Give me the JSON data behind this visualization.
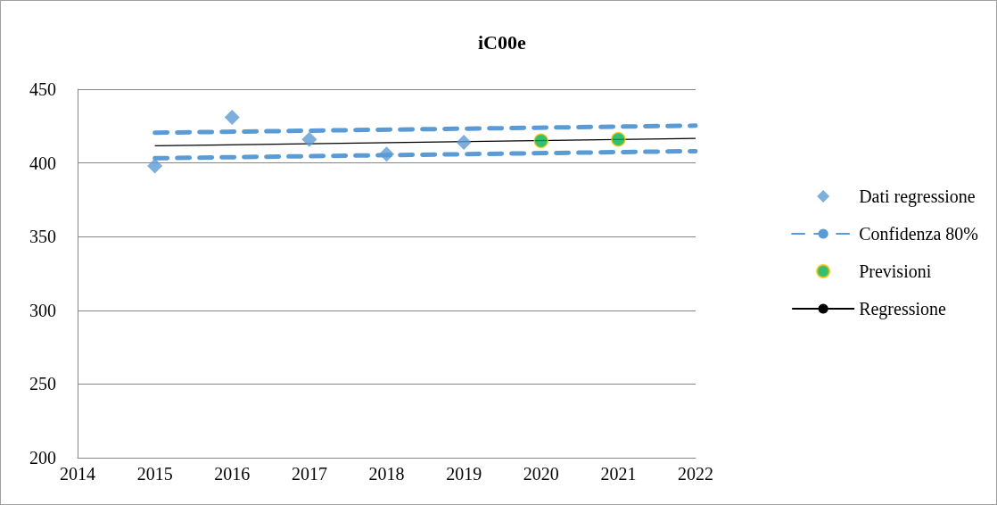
{
  "chart_data": {
    "type": "scatter",
    "title": "iC00e",
    "series": [
      {
        "name": "Dati regressione",
        "marker": "diamond",
        "color": "#5b9bd5",
        "x": [
          2015,
          2016,
          2017,
          2018,
          2019
        ],
        "values": [
          398,
          431,
          416,
          406,
          414
        ]
      },
      {
        "name": "Confidenza 80%",
        "type": "line",
        "marker": "none",
        "line_style": "dashed",
        "color": "#5b9bd5",
        "x": [
          2015,
          2022
        ],
        "values": [
          420.5,
          425.3
        ]
      },
      {
        "type": "line",
        "marker": "none",
        "line_style": "dashed",
        "color": "#5b9bd5",
        "x": [
          2015,
          2022
        ],
        "values": [
          403.2,
          408
        ]
      },
      {
        "name": "Previsioni",
        "marker": "circle",
        "color": "#00b050",
        "x": [
          2020,
          2021
        ],
        "values": [
          415,
          416
        ]
      },
      {
        "name": "Regressione",
        "type": "line",
        "marker": "none",
        "line_style": "solid",
        "color": "#000000",
        "x": [
          2015,
          2022
        ],
        "values": [
          411.6,
          416.6
        ]
      }
    ],
    "xlim": [
      2014,
      2022
    ],
    "xticks": [
      2014,
      2015,
      2016,
      2017,
      2018,
      2019,
      2020,
      2021,
      2022
    ],
    "ylim": [
      200,
      450
    ],
    "yticks": [
      200,
      250,
      300,
      350,
      400,
      450
    ],
    "grid": "y",
    "legend": "right"
  }
}
